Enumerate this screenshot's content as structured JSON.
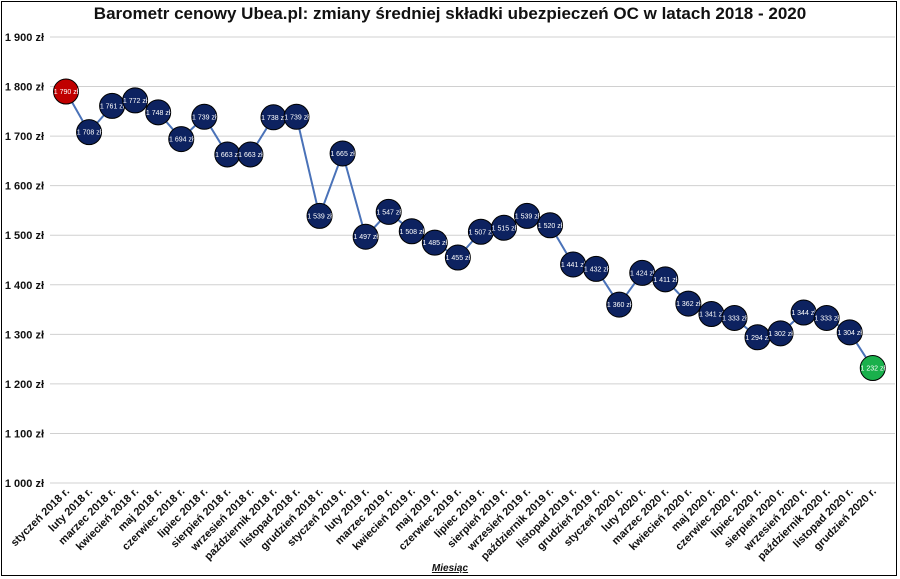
{
  "chart_data": {
    "type": "line",
    "title": "Barometr cenowy Ubea.pl: zmiany średniej składki ubezpieczeń OC w latach 2018 - 2020",
    "xlabel": "Miesiąc",
    "ylabel": "",
    "ylim": [
      1000,
      1900
    ],
    "y_ticks": [
      "1 900 zł",
      "1 800 zł",
      "1 700 zł",
      "1 600 zł",
      "1 500 zł",
      "1 400 zł",
      "1 300 zł",
      "1 200 zł",
      "1 100 zł",
      "1 000 zł"
    ],
    "y_tick_values": [
      1900,
      1800,
      1700,
      1600,
      1500,
      1400,
      1300,
      1200,
      1100,
      1000
    ],
    "grid": true,
    "categories": [
      "styczeń 2018 r.",
      "luty 2018 r.",
      "marzec 2018 r.",
      "kwiecień 2018 r.",
      "maj 2018 r.",
      "czerwiec 2018 r.",
      "lipiec 2018 r.",
      "sierpień 2018 r.",
      "wrzesień 2018 r.",
      "październik 2018 r.",
      "listopad 2018 r.",
      "grudzień 2018 r.",
      "styczeń 2019 r.",
      "luty 2019 r.",
      "marzec 2019 r.",
      "kwiecień 2019 r.",
      "maj 2019 r.",
      "czerwiec 2019 r.",
      "lipiec 2019 r.",
      "sierpień 2019 r.",
      "wrzesień 2019 r.",
      "październik 2019 r.",
      "listopad 2019 r.",
      "grudzień 2019 r.",
      "styczeń 2020 r.",
      "luty 2020 r.",
      "marzec 2020 r.",
      "kwiecień 2020 r.",
      "maj 2020 r.",
      "czerwiec 2020 r.",
      "lipiec 2020 r.",
      "sierpień 2020 r.",
      "wrzesień 2020 r.",
      "październik 2020 r.",
      "listopad 2020 r.",
      "grudzień 2020 r."
    ],
    "values": [
      1790,
      1708,
      1761,
      1772,
      1748,
      1694,
      1739,
      1663,
      1663,
      1738,
      1739,
      1539,
      1665,
      1497,
      1547,
      1508,
      1485,
      1455,
      1507,
      1515,
      1539,
      1520,
      1441,
      1432,
      1360,
      1424,
      1411,
      1362,
      1341,
      1333,
      1294,
      1302,
      1344,
      1333,
      1304,
      1232
    ],
    "data_labels": [
      "1 790 zł",
      "1 708 zł",
      "1 761 zł",
      "1 772 zł",
      "1 748 zł",
      "1 694 zł",
      "1 739 zł",
      "1 663 zł",
      "1 663 zł",
      "1 738 zł",
      "1 739 zł",
      "1 539 zł",
      "1 665 zł",
      "1 497 zł",
      "1 547 zł",
      "1 508 zł",
      "1 485 zł",
      "1 455 zł",
      "1 507 zł",
      "1 515 zł",
      "1 539 zł",
      "1 520 zł",
      "1 441 zł",
      "1 432 zł",
      "1 360 zł",
      "1 424 zł",
      "1 411 zł",
      "1 362 zł",
      "1 341 zł",
      "1 333 zł",
      "1 294 zł",
      "1 302 zł",
      "1 344 zł",
      "1 333 zł",
      "1 304 zł",
      "1 232 zł"
    ],
    "colors": {
      "line": "#4a72b8",
      "marker": "#0d2260",
      "marker_max": "#c00000",
      "marker_min": "#1ab04c",
      "grid": "#d0d0d0"
    }
  }
}
